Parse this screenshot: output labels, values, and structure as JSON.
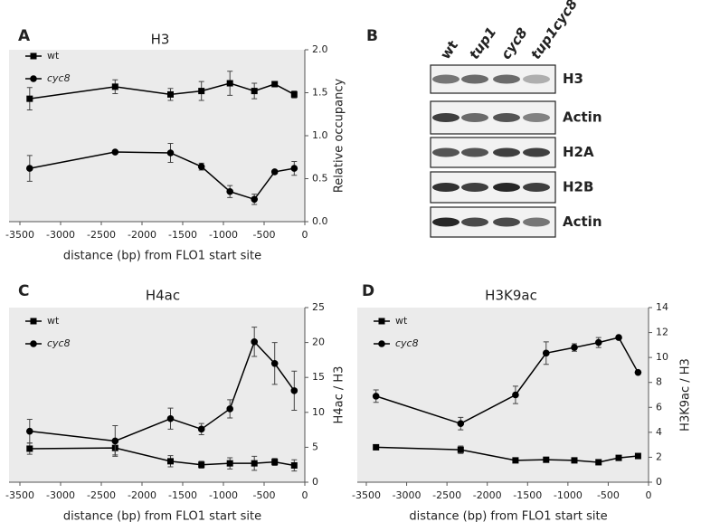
{
  "chart_data": [
    {
      "type": "line",
      "panel_label": "A",
      "title": "H3",
      "xlabel": "distance (bp) from FLO1 start site",
      "ylabel": "Relative occupancy",
      "x": [
        -3380,
        -2330,
        -1650,
        -1270,
        -920,
        -620,
        -370,
        -130
      ],
      "xlim": [
        -3500,
        0
      ],
      "xticks": [
        -3500,
        -3000,
        -2500,
        -2000,
        -1500,
        -1000,
        -500,
        0
      ],
      "ylim": [
        0,
        2
      ],
      "yticks": [
        {
          "value": 0,
          "label": "0.0"
        },
        {
          "value": 0.5,
          "label": "0.5"
        },
        {
          "value": 1,
          "label": "1.0"
        },
        {
          "value": 1.5,
          "label": "1.5"
        },
        {
          "value": 2,
          "label": "2.0"
        }
      ],
      "series": [
        {
          "name": "wt",
          "color": "#000000",
          "marker": "square",
          "italic_name": false,
          "values": [
            1.43,
            1.57,
            1.48,
            1.52,
            1.61,
            1.52,
            1.6,
            1.48
          ],
          "errors": [
            0.13,
            0.08,
            0.07,
            0.11,
            0.14,
            0.09,
            0.02,
            0.04
          ]
        },
        {
          "name": "cyc8",
          "color": "#000000",
          "marker": "circle",
          "italic_name": true,
          "values": [
            0.62,
            0.81,
            0.8,
            0.64,
            0.35,
            0.26,
            0.58,
            0.62
          ],
          "errors": [
            0.15,
            0,
            0.11,
            0.04,
            0.07,
            0.06,
            0,
            0.08
          ]
        }
      ]
    },
    {
      "type": "line",
      "panel_label": "C",
      "title": "H4ac",
      "xlabel": "distance (bp) from FLO1 start site",
      "ylabel": "H4ac / H3",
      "x": [
        -3380,
        -2330,
        -1650,
        -1270,
        -920,
        -620,
        -370,
        -130
      ],
      "xlim": [
        -3500,
        0
      ],
      "xticks": [
        -3500,
        -3000,
        -2500,
        -2000,
        -1500,
        -1000,
        -500,
        0
      ],
      "ylim": [
        0,
        25
      ],
      "yticks": [
        0,
        5,
        10,
        15,
        20,
        25
      ],
      "series": [
        {
          "name": "wt",
          "color": "#000000",
          "marker": "square",
          "italic_name": false,
          "values": [
            4.8,
            4.9,
            3.0,
            2.5,
            2.7,
            2.7,
            2.9,
            2.4
          ],
          "errors": [
            0.8,
            1.0,
            0.8,
            0.5,
            0.8,
            1.0,
            0.5,
            0.8
          ]
        },
        {
          "name": "cyc8",
          "color": "#000000",
          "marker": "circle",
          "italic_name": true,
          "values": [
            7.3,
            5.9,
            9.1,
            7.6,
            10.5,
            20.1,
            17.0,
            13.1
          ],
          "errors": [
            1.7,
            2.2,
            1.5,
            0.8,
            1.3,
            2.1,
            3.0,
            2.8
          ]
        }
      ]
    },
    {
      "type": "line",
      "panel_label": "D",
      "title": "H3K9ac",
      "xlabel": "distance (bp) from FLO1 start site",
      "ylabel": "H3K9ac / H3",
      "x": [
        -3380,
        -2330,
        -1650,
        -1270,
        -920,
        -620,
        -370,
        -130
      ],
      "xlim": [
        -3500,
        0
      ],
      "xticks": [
        -3500,
        -3000,
        -2500,
        -2000,
        -1500,
        -1000,
        -500,
        0
      ],
      "ylim": [
        0,
        14
      ],
      "yticks": [
        0,
        2,
        4,
        6,
        8,
        10,
        12,
        14
      ],
      "series": [
        {
          "name": "wt",
          "color": "#000000",
          "marker": "square",
          "italic_name": false,
          "values": [
            2.8,
            2.6,
            1.75,
            1.8,
            1.75,
            1.6,
            1.95,
            2.1
          ],
          "errors": [
            0.1,
            0.3,
            0.1,
            0.1,
            0.15,
            0.1,
            0.1,
            0.1
          ]
        },
        {
          "name": "cyc8",
          "color": "#000000",
          "marker": "circle",
          "italic_name": true,
          "values": [
            6.9,
            4.7,
            7.0,
            10.35,
            10.8,
            11.2,
            11.6,
            8.8
          ],
          "errors": [
            0.5,
            0.5,
            0.7,
            0.9,
            0.3,
            0.4,
            0,
            0
          ]
        }
      ]
    }
  ],
  "blot": {
    "panel_label": "B",
    "lanes": [
      "wt",
      "tup1",
      "cyc8",
      "tup1cyc8"
    ],
    "rows": [
      "H3",
      "Actin",
      "H2A",
      "H2B",
      "Actin"
    ]
  }
}
